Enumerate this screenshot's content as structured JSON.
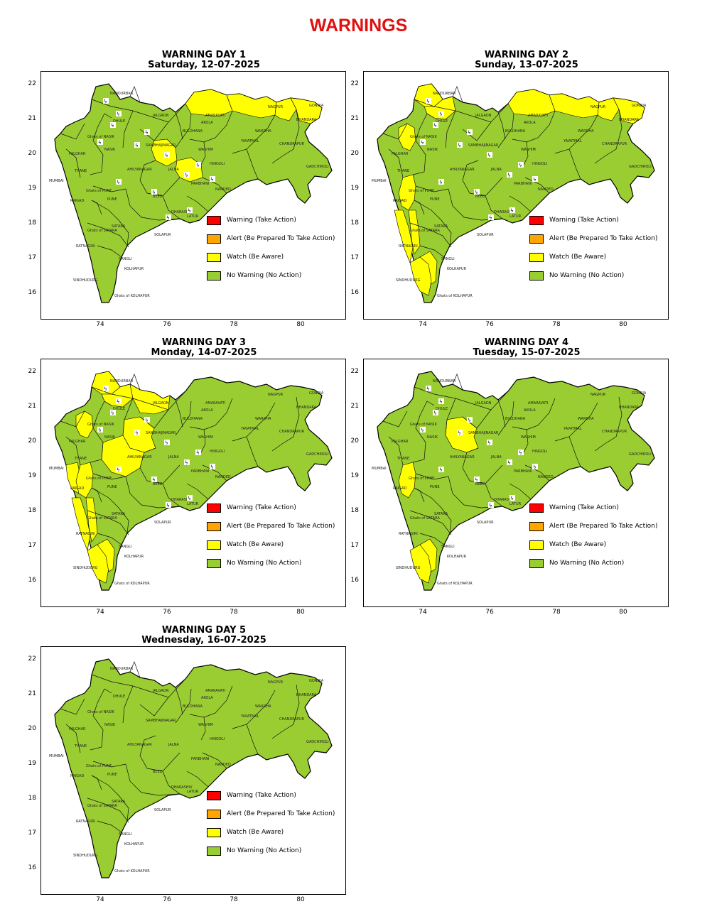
{
  "page_title": "WARNINGS",
  "colors": {
    "warning": "#ff0000",
    "alert": "#ffa500",
    "watch": "#ffff00",
    "no_warning": "#9acd32",
    "title": "#e01010"
  },
  "legend": [
    {
      "label": "Warning (Take Action)",
      "color": "#ff0000"
    },
    {
      "label": "Alert (Be Prepared To Take Action)",
      "color": "#ffa500"
    },
    {
      "label": "Watch (Be Aware)",
      "color": "#ffff00"
    },
    {
      "label": "No Warning (No Action)",
      "color": "#9acd32"
    }
  ],
  "axes": {
    "x_ticks": [
      "74",
      "76",
      "78",
      "80"
    ],
    "y_ticks": [
      "22",
      "21",
      "20",
      "19",
      "18",
      "17",
      "16"
    ]
  },
  "district_labels": [
    "NANDURBAR",
    "DHULE",
    "JALGAON",
    "AMARAVATI",
    "NAGPUR",
    "GONDIA",
    "BHANDARA",
    "AKOLA",
    "BULDHANA",
    "WARDHA",
    "YAVATMAL",
    "CHANDRAPUR",
    "GADCHIROLI",
    "WASHIM",
    "HINGOLI",
    "NANDED",
    "JALNA",
    "PARBHANI",
    "SAMBHAJINAGAR",
    "AHILYANAGAR",
    "NASIK",
    "PALGHAR",
    "THANE",
    "MUMBAI",
    "PUNE",
    "RAIGAD",
    "BEED",
    "LATUR",
    "DHARASHIV",
    "SOLAPUR",
    "SATARA",
    "RATNAGIRI",
    "SANGLI",
    "KOLHAPUR",
    "SINDHUDURG",
    "Ghats of NASIK",
    "Ghats of PUNE",
    "Ghats of SATARA",
    "Ghats of KOLHAPUR"
  ],
  "days": [
    {
      "title": "WARNING DAY 1",
      "date": "Saturday, 12-07-2025",
      "watch_districts": [
        "AMARAVATI",
        "NAGPUR",
        "BHANDARA",
        "GONDIA",
        "JALNA",
        "PARBHANI"
      ]
    },
    {
      "title": "WARNING DAY 2",
      "date": "Sunday, 13-07-2025",
      "watch_districts": [
        "NANDURBAR",
        "DHULE",
        "Ghats of NASIK",
        "AMARAVATI",
        "NAGPUR",
        "BHANDARA",
        "GONDIA",
        "Ghats of PUNE",
        "RATNAGIRI",
        "Ghats of SATARA",
        "Ghats of KOLHAPUR",
        "SINDHUDURG"
      ]
    },
    {
      "title": "WARNING DAY 3",
      "date": "Monday, 14-07-2025",
      "watch_districts": [
        "NANDURBAR",
        "DHULE",
        "JALGAON",
        "Ghats of NASIK",
        "SAMBHAJINAGAR",
        "AHILYANAGAR",
        "RAIGAD",
        "Ghats of PUNE",
        "RATNAGIRI",
        "Ghats of SATARA",
        "SINDHUDURG",
        "Ghats of KOLHAPUR"
      ]
    },
    {
      "title": "WARNING DAY 4",
      "date": "Tuesday, 15-07-2025",
      "watch_districts": [
        "SAMBHAJINAGAR",
        "Ghats of PUNE",
        "SINDHUDURG",
        "Ghats of KOLHAPUR"
      ]
    },
    {
      "title": "WARNING DAY 5",
      "date": "Wednesday, 16-07-2025",
      "watch_districts": []
    }
  ]
}
